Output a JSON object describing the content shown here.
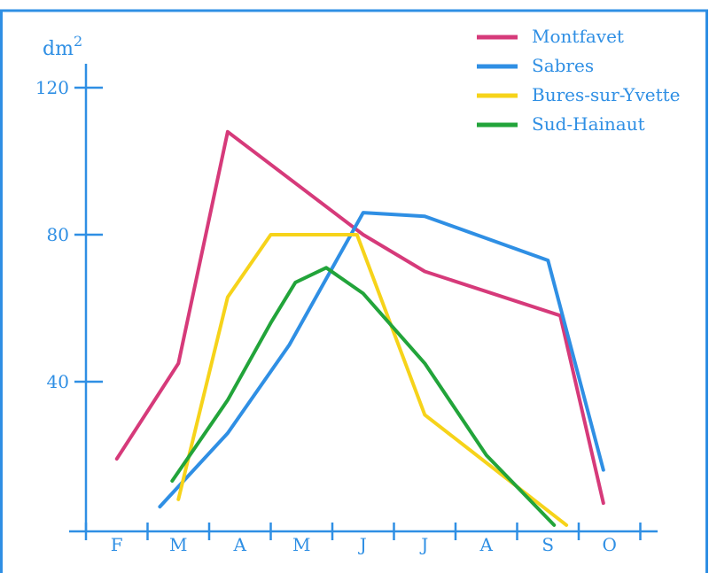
{
  "chart_data": {
    "type": "line",
    "ylabel": "dm",
    "ylabel_superscript": "2",
    "y_ticks": [
      40,
      80,
      120
    ],
    "ylim": [
      0,
      120
    ],
    "x_tick_labels": [
      "F",
      "M",
      "A",
      "M",
      "J",
      "J",
      "A",
      "S",
      "O"
    ],
    "legend_position": "top-right",
    "series": [
      {
        "name": "Montfavet",
        "color": "#d63a7a",
        "points": [
          [
            0.5,
            19
          ],
          [
            1.5,
            45
          ],
          [
            2.3,
            108
          ],
          [
            4.5,
            80
          ],
          [
            5.5,
            70
          ],
          [
            7.7,
            58
          ],
          [
            8.4,
            7
          ]
        ]
      },
      {
        "name": "Sabres",
        "color": "#2f8fe4",
        "points": [
          [
            1.2,
            6
          ],
          [
            2.3,
            26
          ],
          [
            3.3,
            50
          ],
          [
            4.5,
            86
          ],
          [
            5.5,
            85
          ],
          [
            7.5,
            73
          ],
          [
            8.4,
            16
          ]
        ]
      },
      {
        "name": "Bures-sur-Yvette",
        "color": "#f6d31a",
        "points": [
          [
            1.5,
            8
          ],
          [
            2.3,
            63
          ],
          [
            3.0,
            80
          ],
          [
            4.4,
            80
          ],
          [
            5.5,
            31
          ],
          [
            7.8,
            1
          ]
        ]
      },
      {
        "name": "Sud-Hainaut",
        "color": "#22a43a",
        "points": [
          [
            1.4,
            13
          ],
          [
            2.3,
            35
          ],
          [
            3.0,
            56
          ],
          [
            3.4,
            67
          ],
          [
            3.9,
            71
          ],
          [
            4.5,
            64
          ],
          [
            5.5,
            45
          ],
          [
            6.5,
            20
          ],
          [
            7.6,
            1
          ]
        ]
      }
    ]
  }
}
